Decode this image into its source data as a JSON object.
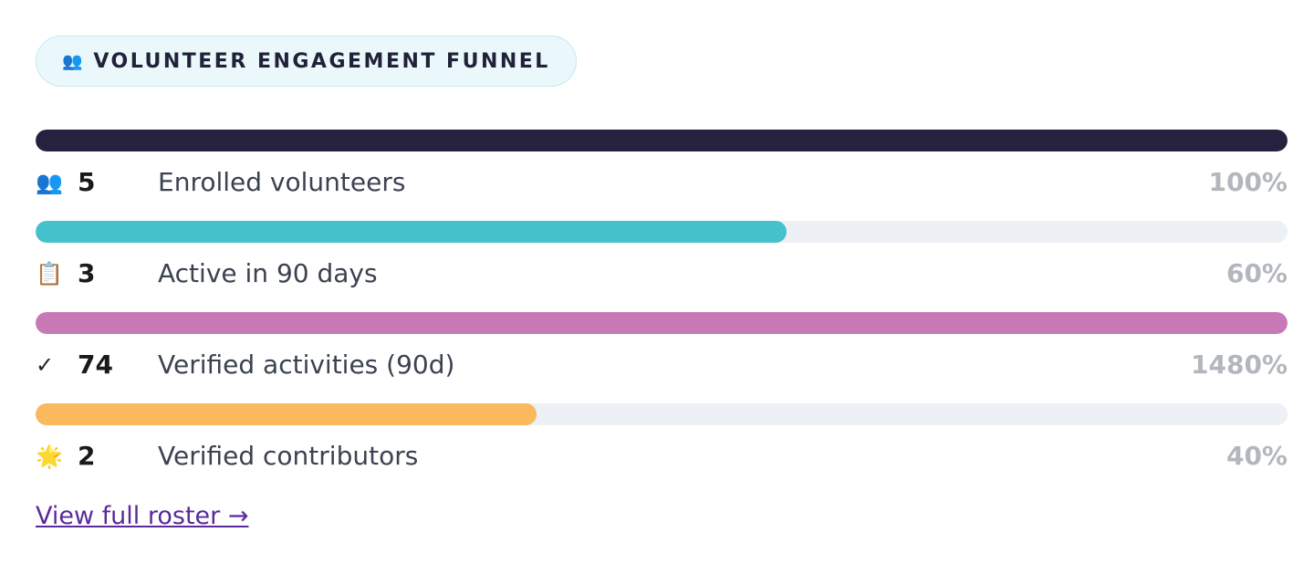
{
  "header": {
    "icon": "👥",
    "title": "VOLUNTEER ENGAGEMENT FUNNEL"
  },
  "fill_range": [
    0,
    100
  ],
  "steps": [
    {
      "icon": "👥",
      "count": 5,
      "label": "Enrolled volunteers",
      "percent": {
        "value": 100,
        "label": "100%"
      },
      "fill": 100,
      "color": "#25213f"
    },
    {
      "icon": "📋",
      "count": 3,
      "label": "Active in 90 days",
      "percent": {
        "value": 60,
        "label": "60%"
      },
      "fill": 60,
      "color": "#45c1cc"
    },
    {
      "icon": "✓",
      "count": 74,
      "label": "Verified activities (90d)",
      "percent": {
        "value": 1480,
        "label": "1480%"
      },
      "fill": 100,
      "color": "#c878b4"
    },
    {
      "icon": "🌟",
      "count": 2,
      "label": "Verified contributors",
      "percent": {
        "value": 40,
        "label": "40%"
      },
      "fill": 40,
      "color": "#f9b95c"
    }
  ],
  "link": "View full roster →"
}
